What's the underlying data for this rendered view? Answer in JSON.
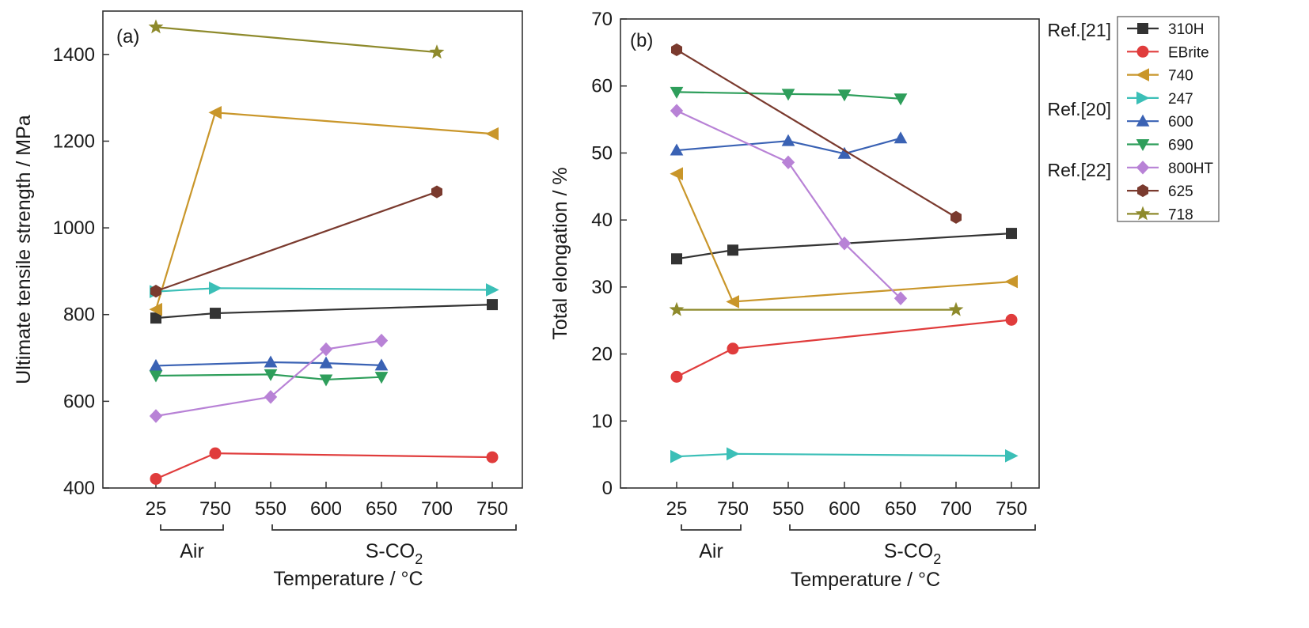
{
  "chart_data": [
    {
      "type": "line",
      "panel_label": "(a)",
      "ylabel": "Ultimate tensile strength / MPa",
      "xlabel": "Temperature / °C",
      "ylim": [
        400,
        1500
      ],
      "yticks": [
        400,
        600,
        800,
        1000,
        1200,
        1400
      ],
      "categories": [
        "25",
        "750",
        "550",
        "600",
        "650",
        "700",
        "750"
      ],
      "groups": [
        {
          "label": "Air",
          "from": 0,
          "to": 1
        },
        {
          "label": "S-CO",
          "sub": "2",
          "from": 2,
          "to": 6
        }
      ],
      "series": [
        {
          "name": "310H",
          "color": "#333333",
          "marker": "square",
          "points": [
            {
              "x": 0,
              "y": 792
            },
            {
              "x": 1,
              "y": 803
            },
            {
              "x": 6,
              "y": 823
            }
          ]
        },
        {
          "name": "EBrite",
          "color": "#e03c3c",
          "marker": "circle",
          "points": [
            {
              "x": 0,
              "y": 421
            },
            {
              "x": 1,
              "y": 480
            },
            {
              "x": 6,
              "y": 471
            }
          ]
        },
        {
          "name": "740",
          "color": "#c9962a",
          "marker": "tri-left",
          "points": [
            {
              "x": 0,
              "y": 812
            },
            {
              "x": 1,
              "y": 1266
            },
            {
              "x": 6,
              "y": 1217
            }
          ]
        },
        {
          "name": "247",
          "color": "#3bbfb7",
          "marker": "tri-right",
          "points": [
            {
              "x": 0,
              "y": 853
            },
            {
              "x": 1,
              "y": 861
            },
            {
              "x": 6,
              "y": 857
            }
          ]
        },
        {
          "name": "600",
          "color": "#3a62b4",
          "marker": "tri-up",
          "points": [
            {
              "x": 0,
              "y": 682
            },
            {
              "x": 2,
              "y": 690
            },
            {
              "x": 3,
              "y": 688
            },
            {
              "x": 4,
              "y": 683
            }
          ]
        },
        {
          "name": "690",
          "color": "#2e9e5b",
          "marker": "tri-down",
          "points": [
            {
              "x": 0,
              "y": 659
            },
            {
              "x": 2,
              "y": 662
            },
            {
              "x": 3,
              "y": 650
            },
            {
              "x": 4,
              "y": 656
            }
          ]
        },
        {
          "name": "800HT",
          "color": "#b882d6",
          "marker": "diamond",
          "points": [
            {
              "x": 0,
              "y": 566
            },
            {
              "x": 2,
              "y": 610
            },
            {
              "x": 3,
              "y": 720
            },
            {
              "x": 4,
              "y": 740
            }
          ]
        },
        {
          "name": "625",
          "color": "#7a3a2e",
          "marker": "hexagon",
          "points": [
            {
              "x": 0,
              "y": 854
            },
            {
              "x": 5,
              "y": 1083
            }
          ]
        },
        {
          "name": "718",
          "color": "#8e8a2c",
          "marker": "star",
          "points": [
            {
              "x": 0,
              "y": 1463
            },
            {
              "x": 5,
              "y": 1405
            }
          ]
        }
      ]
    },
    {
      "type": "line",
      "panel_label": "(b)",
      "ylabel": "Total elongation / %",
      "xlabel": "Temperature / °C",
      "ylim": [
        0,
        70
      ],
      "yticks": [
        0,
        10,
        20,
        30,
        40,
        50,
        60,
        70
      ],
      "categories": [
        "25",
        "750",
        "550",
        "600",
        "650",
        "700",
        "750"
      ],
      "groups": [
        {
          "label": "Air",
          "from": 0,
          "to": 1
        },
        {
          "label": "S-CO",
          "sub": "2",
          "from": 2,
          "to": 6
        }
      ],
      "series": [
        {
          "name": "310H",
          "color": "#333333",
          "marker": "square",
          "points": [
            {
              "x": 0,
              "y": 34.2
            },
            {
              "x": 1,
              "y": 35.5
            },
            {
              "x": 6,
              "y": 38.0
            }
          ]
        },
        {
          "name": "EBrite",
          "color": "#e03c3c",
          "marker": "circle",
          "points": [
            {
              "x": 0,
              "y": 16.6
            },
            {
              "x": 1,
              "y": 20.8
            },
            {
              "x": 6,
              "y": 25.1
            }
          ]
        },
        {
          "name": "740",
          "color": "#c9962a",
          "marker": "tri-left",
          "points": [
            {
              "x": 0,
              "y": 46.9
            },
            {
              "x": 1,
              "y": 27.8
            },
            {
              "x": 6,
              "y": 30.8
            }
          ]
        },
        {
          "name": "247",
          "color": "#3bbfb7",
          "marker": "tri-right",
          "points": [
            {
              "x": 0,
              "y": 4.7
            },
            {
              "x": 1,
              "y": 5.1
            },
            {
              "x": 6,
              "y": 4.8
            }
          ]
        },
        {
          "name": "600",
          "color": "#3a62b4",
          "marker": "tri-up",
          "points": [
            {
              "x": 0,
              "y": 50.4
            },
            {
              "x": 2,
              "y": 51.8
            },
            {
              "x": 3,
              "y": 49.9
            },
            {
              "x": 4,
              "y": 52.2
            }
          ]
        },
        {
          "name": "690",
          "color": "#2e9e5b",
          "marker": "tri-down",
          "points": [
            {
              "x": 0,
              "y": 59.1
            },
            {
              "x": 2,
              "y": 58.8
            },
            {
              "x": 3,
              "y": 58.7
            },
            {
              "x": 4,
              "y": 58.1
            }
          ]
        },
        {
          "name": "800HT",
          "color": "#b882d6",
          "marker": "diamond",
          "points": [
            {
              "x": 0,
              "y": 56.3
            },
            {
              "x": 2,
              "y": 48.6
            },
            {
              "x": 3,
              "y": 36.5
            },
            {
              "x": 4,
              "y": 28.3
            }
          ]
        },
        {
          "name": "625",
          "color": "#7a3a2e",
          "marker": "hexagon",
          "points": [
            {
              "x": 0,
              "y": 65.4
            },
            {
              "x": 5,
              "y": 40.4
            }
          ]
        },
        {
          "name": "718",
          "color": "#8e8a2c",
          "marker": "star",
          "points": [
            {
              "x": 0,
              "y": 26.6
            },
            {
              "x": 5,
              "y": 26.6
            }
          ]
        }
      ]
    }
  ],
  "legend": {
    "entries": [
      "310H",
      "EBrite",
      "740",
      "247",
      "600",
      "690",
      "800HT",
      "625",
      "718"
    ],
    "refs": [
      {
        "label": "Ref.[21]",
        "entries": [
          "310H",
          "EBrite"
        ]
      },
      {
        "label": "Ref.[20]",
        "entries": [
          "740",
          "247",
          "600",
          "690"
        ]
      },
      {
        "label": "Ref.[22]",
        "entries": [
          "800HT",
          "625",
          "718"
        ]
      }
    ]
  }
}
